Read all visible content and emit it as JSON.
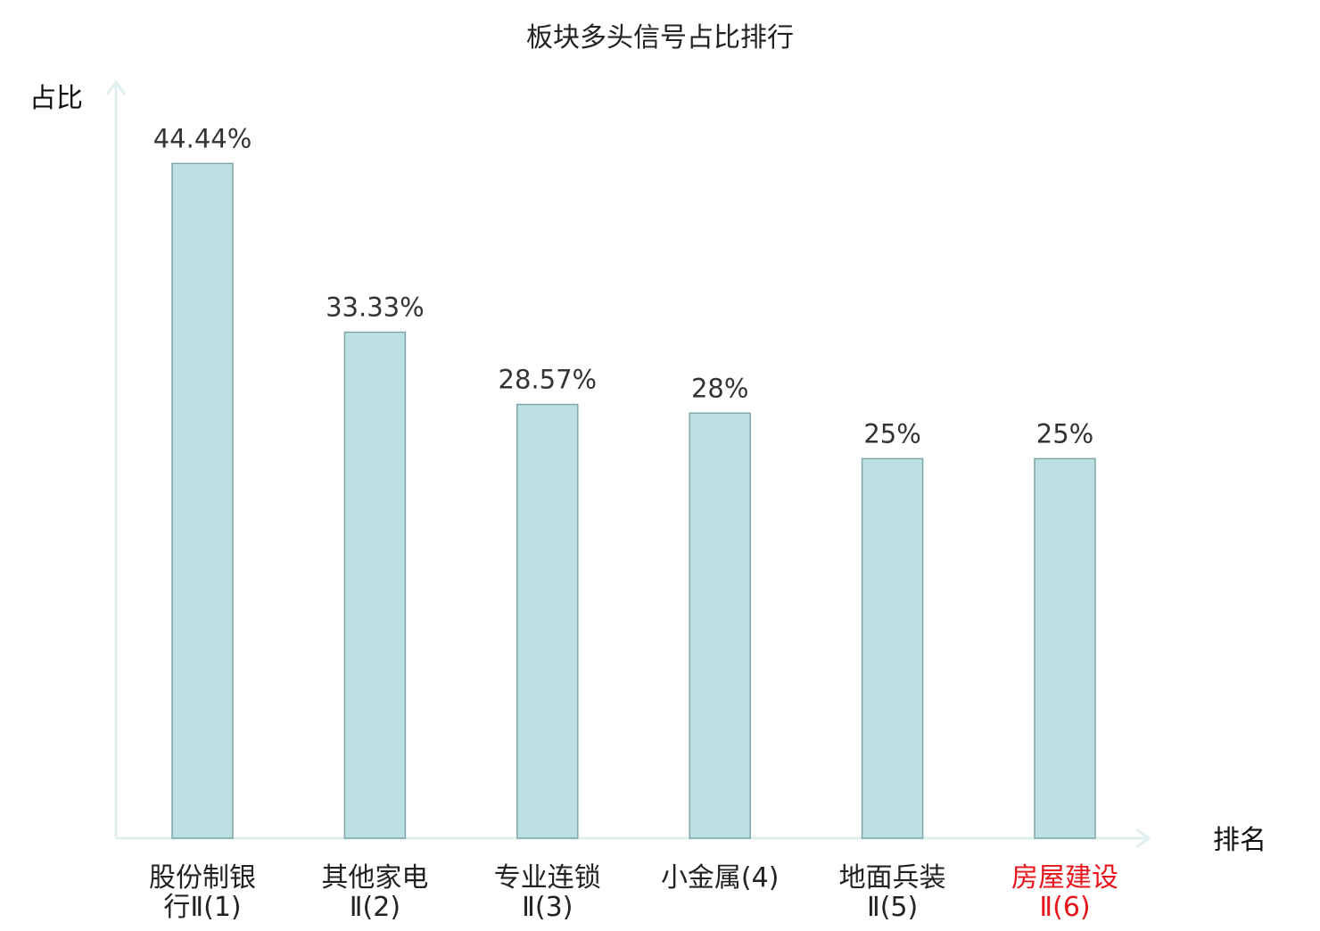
{
  "chart_data": {
    "type": "bar",
    "title": "板块多头信号占比排行",
    "ylabel": "占比",
    "xlabel": "排名",
    "ylim": [
      0,
      50
    ],
    "grid": false,
    "legend": "none",
    "categories": [
      {
        "lines": [
          "股份制银",
          "行Ⅱ(1)"
        ],
        "highlight": false
      },
      {
        "lines": [
          "其他家电",
          "Ⅱ(2)"
        ],
        "highlight": false
      },
      {
        "lines": [
          "专业连锁",
          "Ⅱ(3)"
        ],
        "highlight": false
      },
      {
        "lines": [
          "小金属(4)"
        ],
        "highlight": false
      },
      {
        "lines": [
          "地面兵装",
          "Ⅱ(5)"
        ],
        "highlight": false
      },
      {
        "lines": [
          "房屋建设",
          "Ⅱ(6)"
        ],
        "highlight": true
      }
    ],
    "values": [
      44.44,
      33.33,
      28.57,
      28,
      25,
      25
    ],
    "value_labels": [
      "44.44%",
      "33.33%",
      "28.57%",
      "28%",
      "25%",
      "25%"
    ]
  },
  "colors": {
    "bar_fill": "#bce0e2",
    "bar_stroke": "#7fa6aa",
    "axis": "#dff0ee",
    "text": "#222222",
    "value_text": "#333333",
    "highlight_text": "#e8141b"
  }
}
